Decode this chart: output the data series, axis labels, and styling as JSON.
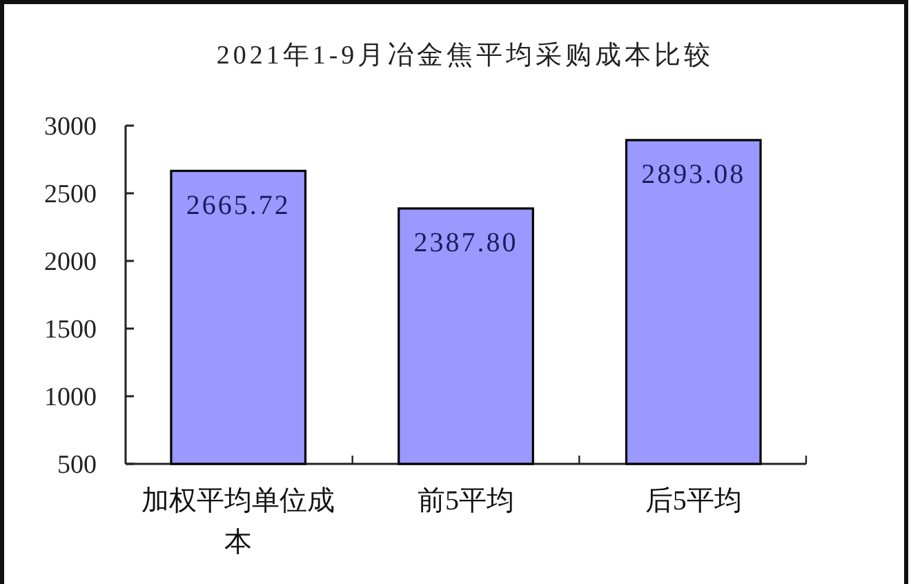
{
  "chart_data": {
    "type": "bar",
    "title": "2021年1-9月冶金焦平均采购成本比较",
    "categories": [
      "加权平均单位成本",
      "前5平均",
      "后5平均"
    ],
    "values": [
      2665.72,
      2387.8,
      2893.08
    ],
    "color": "#9999ff",
    "value_labels": [
      "2665.72",
      "2387.80",
      "2893.08"
    ],
    "ylim": [
      500,
      3000
    ],
    "yticks": [
      500,
      1000,
      1500,
      2000,
      2500,
      3000
    ]
  }
}
